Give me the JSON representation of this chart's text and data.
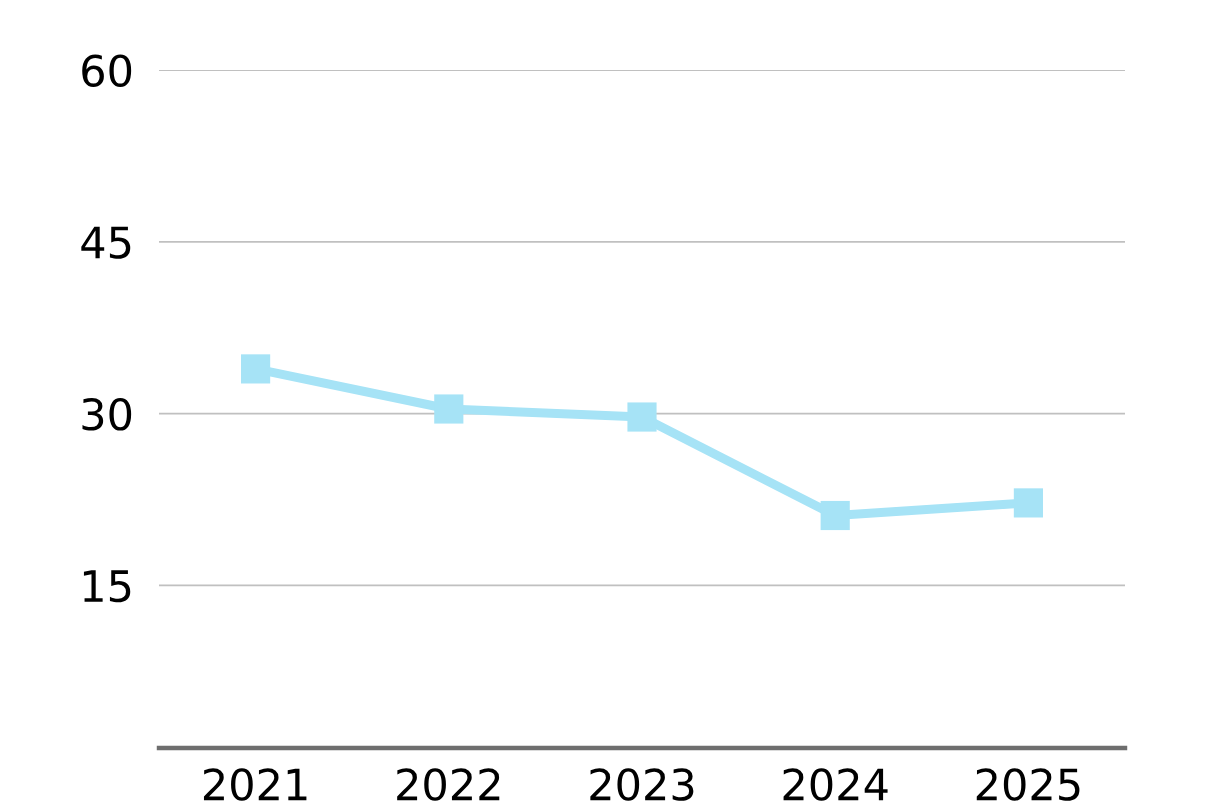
{
  "chart_data": {
    "type": "line",
    "categories": [
      "2021",
      "2022",
      "2023",
      "2024",
      "2025"
    ],
    "series": [
      {
        "color": "#a6e3f6",
        "values": [
          33.9,
          30.4,
          29.7,
          21.1,
          22.2
        ]
      }
    ],
    "ylim": [
      0.8,
      60
    ],
    "yticks": [
      15,
      30,
      45,
      60
    ],
    "grid": "y",
    "marker": "square",
    "line_style": "solid"
  }
}
